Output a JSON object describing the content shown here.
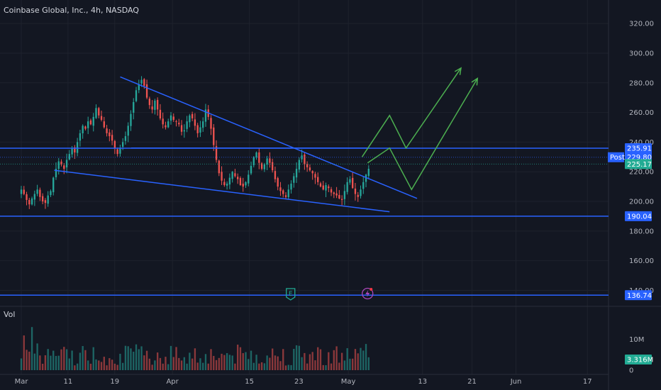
{
  "header": {
    "title": "Coinbase Global, Inc., 4h, NASDAQ"
  },
  "volume_label": "Vol",
  "price_badges": [
    {
      "value": "235.91",
      "color": "#2962ff",
      "price": 235.91
    },
    {
      "value": "229.80",
      "color": "#2962ff",
      "price": 229.8,
      "tag": "Post"
    },
    {
      "value": "225.17",
      "color": "#22ab94",
      "price": 225.17
    },
    {
      "value": "190.04",
      "color": "#2962ff",
      "price": 190.04
    },
    {
      "value": "136.74",
      "color": "#2962ff",
      "price": 136.74
    }
  ],
  "volume_badge": {
    "value": "3.316M",
    "color": "#22ab94"
  },
  "chart_data": {
    "type": "candlestick",
    "title": "Coinbase Global, Inc., 4h, NASDAQ",
    "y_axis": {
      "ticks": [
        "320.00",
        "300.00",
        "280.00",
        "260.00",
        "240.00",
        "220.00",
        "200.00",
        "180.00",
        "160.00",
        "140.00"
      ],
      "range": [
        134,
        322
      ]
    },
    "x_axis": {
      "ticks": [
        "Mar",
        "11",
        "19",
        "Apr",
        "15",
        "23",
        "May",
        "13",
        "21",
        "Jun",
        "17"
      ],
      "range_days": [
        0,
        109
      ]
    },
    "volume_axis": {
      "ticks": [
        "10M",
        "0"
      ],
      "range_millions": [
        0,
        16
      ]
    },
    "approx_closes": [
      208,
      205,
      201,
      198,
      202,
      205,
      208,
      203,
      200,
      199,
      204,
      207,
      216,
      222,
      227,
      225,
      222,
      228,
      232,
      236,
      233,
      240,
      246,
      251,
      249,
      254,
      252,
      257,
      263,
      258,
      255,
      250,
      246,
      244,
      241,
      236,
      232,
      236,
      240,
      244,
      251,
      259,
      267,
      275,
      279,
      282,
      278,
      270,
      265,
      262,
      268,
      262,
      256,
      252,
      250,
      254,
      258,
      255,
      254,
      252,
      247,
      248,
      254,
      258,
      256,
      251,
      246,
      250,
      254,
      262,
      257,
      249,
      238,
      228,
      219,
      214,
      211,
      212,
      216,
      220,
      217,
      215,
      211,
      210,
      213,
      218,
      224,
      230,
      233,
      226,
      222,
      225,
      229,
      226,
      221,
      215,
      210,
      207,
      205,
      203,
      208,
      212,
      217,
      222,
      228,
      231,
      225,
      223,
      221,
      219,
      216,
      213,
      210,
      208,
      211,
      209,
      206,
      205,
      204,
      202,
      201,
      207,
      213,
      215,
      209,
      205,
      203,
      208,
      213,
      218,
      222
    ],
    "annotations": {
      "horizontal_lines": [
        235.91,
        190.04,
        136.74
      ],
      "support_resistance_segment": {
        "price": 236,
        "from_day": 20,
        "to_day": 63
      },
      "channel_upper": [
        [
          18,
          284
        ],
        [
          72,
          202
        ]
      ],
      "channel_lower": [
        [
          6,
          221
        ],
        [
          67,
          193
        ]
      ],
      "projection_paths": [
        [
          [
            62,
            230
          ],
          [
            67,
            258
          ],
          [
            70,
            236
          ],
          [
            80,
            290
          ]
        ],
        [
          [
            63,
            226
          ],
          [
            67,
            236
          ],
          [
            71,
            208
          ],
          [
            83,
            283
          ]
        ]
      ],
      "markers": [
        {
          "type": "earnings",
          "day": 49
        },
        {
          "type": "dividend",
          "day": 63
        }
      ]
    }
  }
}
